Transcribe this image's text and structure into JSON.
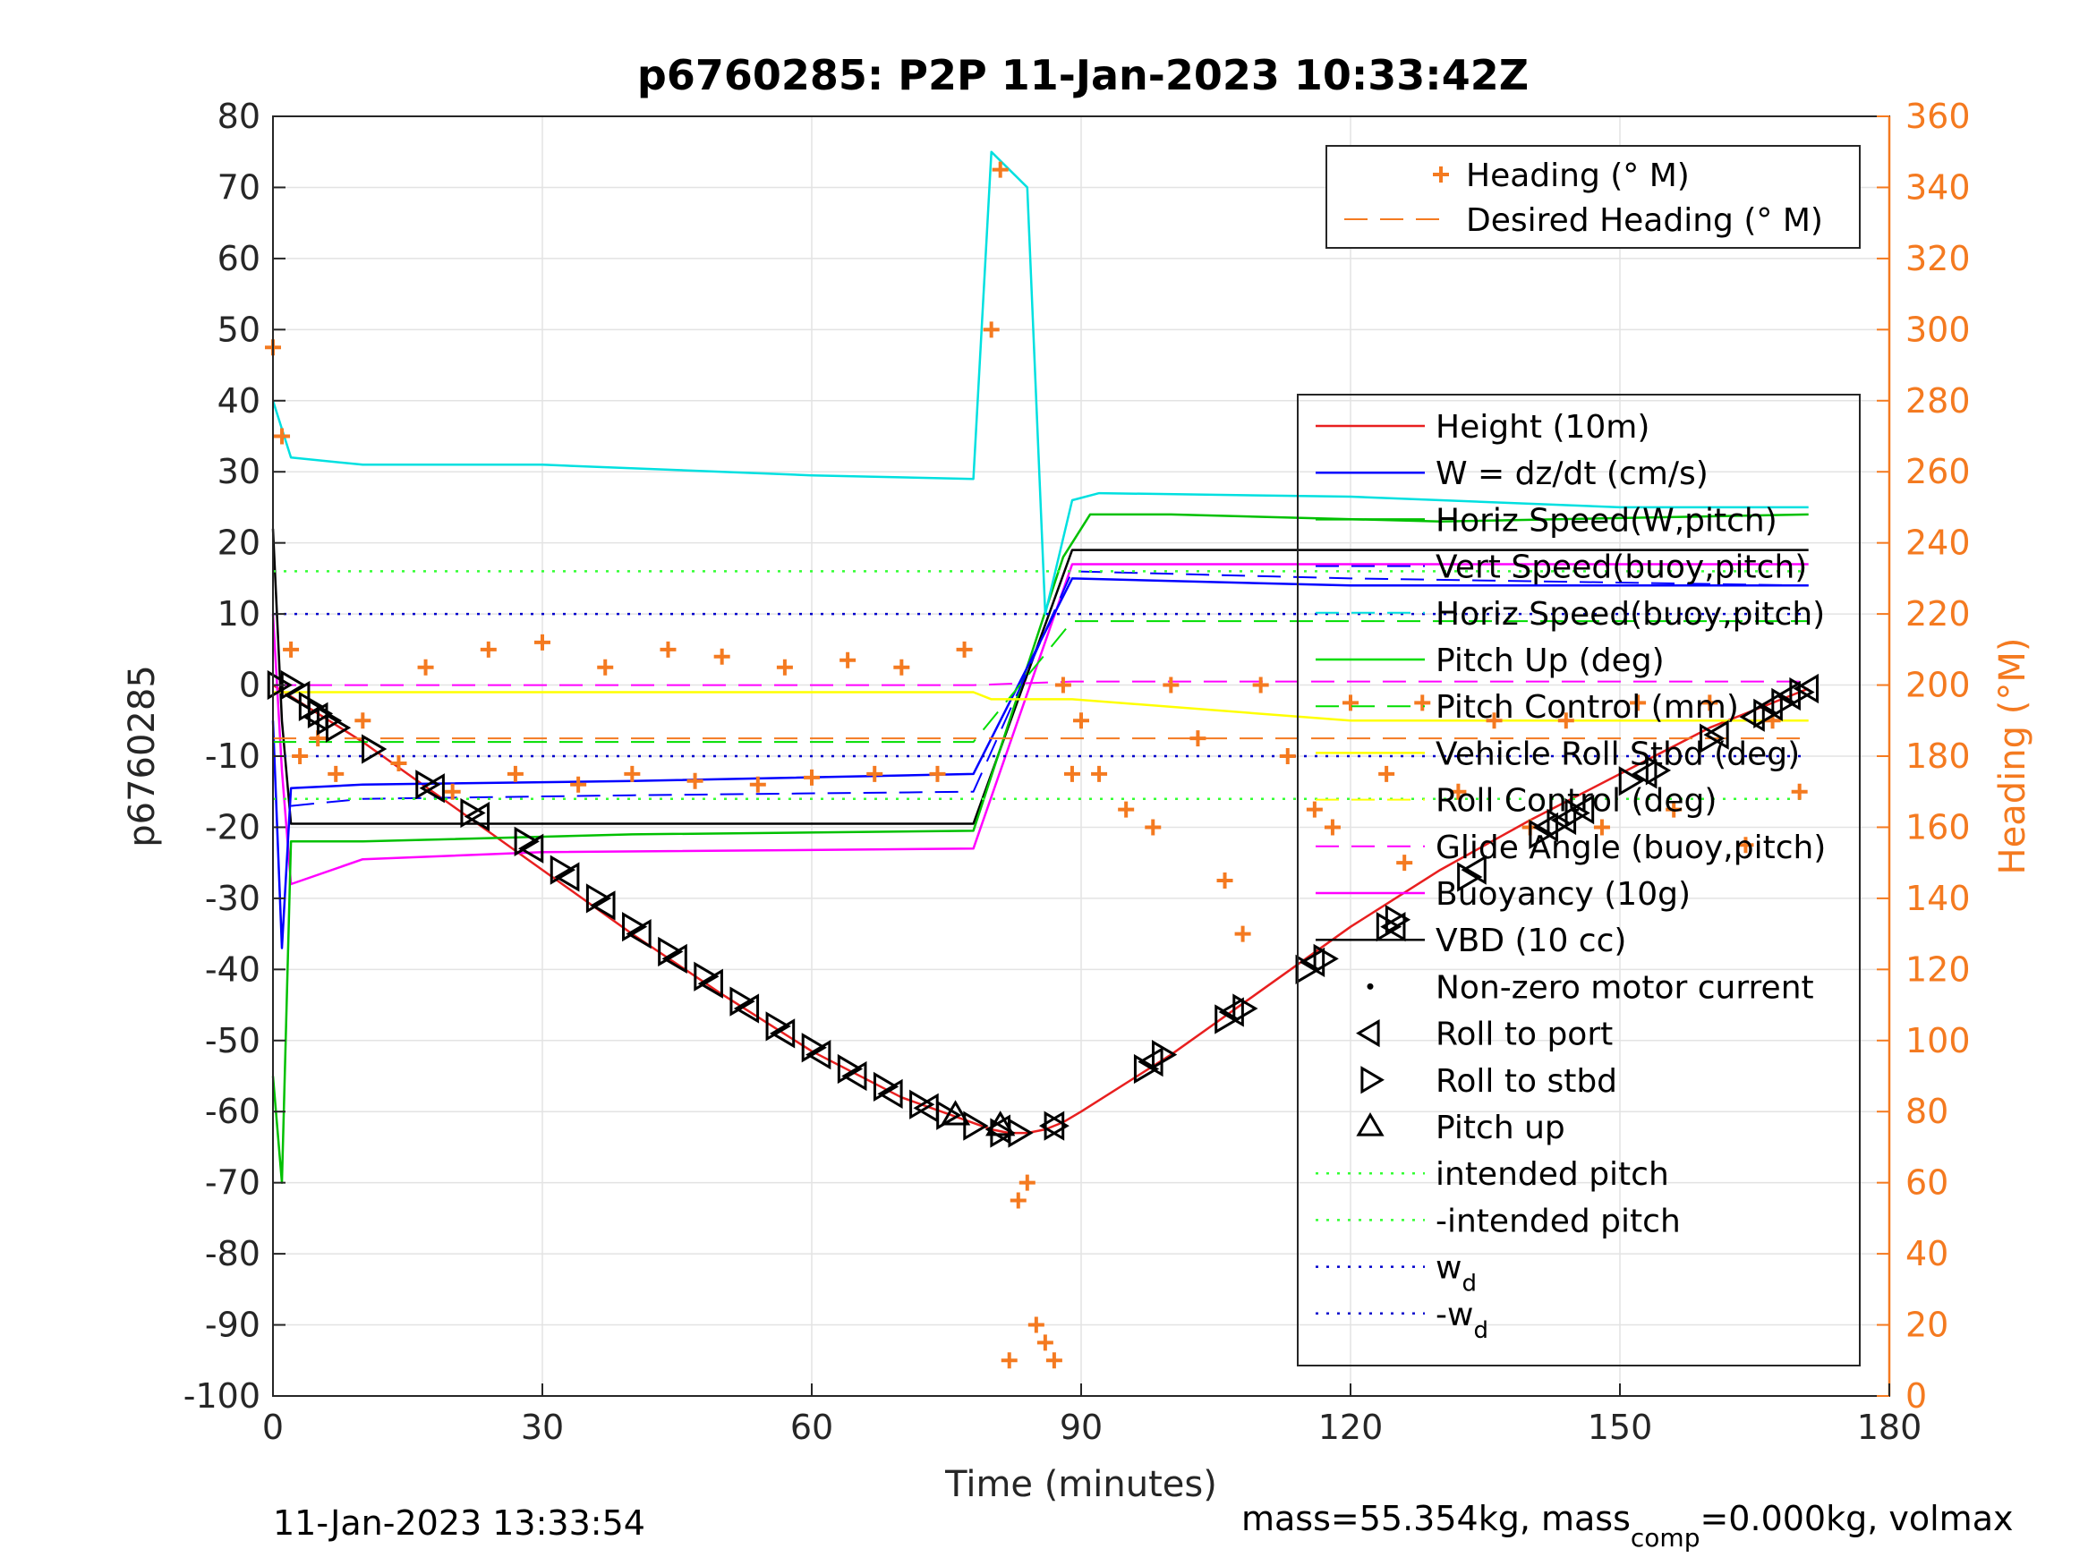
{
  "chart_data": {
    "type": "line",
    "title": "p6760285: P2P 11-Jan-2023 10:33:42Z",
    "xlabel": "Time (minutes)",
    "ylabel": "p6760285",
    "y2label": "Heading (°M)",
    "xlim": [
      0,
      180
    ],
    "ylim": [
      -100,
      80
    ],
    "y2lim": [
      0,
      360
    ],
    "xticks": [
      0,
      30,
      60,
      90,
      120,
      150,
      180
    ],
    "yticks": [
      80,
      70,
      60,
      50,
      40,
      30,
      20,
      10,
      0,
      -10,
      -20,
      -30,
      -40,
      -50,
      -60,
      -70,
      -80,
      -90,
      -100
    ],
    "y2ticks": [
      360,
      340,
      320,
      300,
      280,
      260,
      240,
      220,
      200,
      180,
      160,
      140,
      120,
      100,
      80,
      60,
      40,
      20,
      0
    ],
    "grid": true,
    "footer_left": "11-Jan-2023 13:33:54",
    "footer_right": "mass=55.354kg, mass",
    "footer_right_sub": "comp",
    "footer_right_tail": "=0.000kg, volmax",
    "colors": {
      "axes": "#262626",
      "heading": "#f47a20",
      "height": "#e81f1f",
      "w": "#0000ff",
      "horiz_speed_w": "#00c000",
      "vert_speed_buoy": "#0000ff",
      "horiz_speed_buoy": "#00e0e0",
      "pitch_up": "#00dd00",
      "pitch_control": "#00dd00",
      "roll": "#ffff00",
      "roll_control": "#ffff00",
      "glide_angle": "#ff00ff",
      "buoyancy": "#ff00ff",
      "vbd": "#000000",
      "intended_pitch": "#33ff33",
      "wd": "#0000cc",
      "markers": "#000000"
    },
    "legend_heading": {
      "position": "top-right",
      "entries": [
        {
          "label": "Heading (° M)",
          "style": "plus",
          "color": "#f47a20"
        },
        {
          "label": "Desired Heading (° M)",
          "style": "dash",
          "color": "#f47a20"
        }
      ]
    },
    "legend_main": {
      "position": "right",
      "entries": [
        {
          "label": "Height (10m)",
          "style": "line",
          "color": "#e81f1f"
        },
        {
          "label": "W = dz/dt (cm/s)",
          "style": "line",
          "color": "#0000ff"
        },
        {
          "label": "Horiz Speed(W,pitch)",
          "style": "line",
          "color": "#00c000"
        },
        {
          "label": "Vert Speed(buoy,pitch)",
          "style": "dash",
          "color": "#0000ff"
        },
        {
          "label": "Horiz Speed(buoy,pitch)",
          "style": "dash",
          "color": "#00e0e0"
        },
        {
          "label": "Pitch Up (deg)",
          "style": "line",
          "color": "#00dd00"
        },
        {
          "label": "Pitch Control (mm)",
          "style": "dash",
          "color": "#00dd00"
        },
        {
          "label": "Vehicle Roll Stbd (deg)",
          "style": "line",
          "color": "#ffff00"
        },
        {
          "label": "Roll Control (deg)",
          "style": "dash",
          "color": "#ffff00"
        },
        {
          "label": "Glide Angle (buoy,pitch)",
          "style": "dash",
          "color": "#ff00ff"
        },
        {
          "label": "Buoyancy (10g)",
          "style": "line",
          "color": "#ff00ff"
        },
        {
          "label": "VBD (10 cc)",
          "style": "line",
          "color": "#000000"
        },
        {
          "label": "Non-zero motor current",
          "style": "dot",
          "color": "#000000"
        },
        {
          "label": "Roll to port",
          "style": "tri-left",
          "color": "#000000"
        },
        {
          "label": "Roll to stbd",
          "style": "tri-right",
          "color": "#000000"
        },
        {
          "label": "Pitch up",
          "style": "tri-up",
          "color": "#000000"
        },
        {
          "label": "intended pitch",
          "style": "dot-line",
          "color": "#33ff33"
        },
        {
          "label": "-intended pitch",
          "style": "dot-line",
          "color": "#33ff33"
        },
        {
          "label": "w",
          "sub": "d",
          "style": "dot-line",
          "color": "#0000cc"
        },
        {
          "label": "-w",
          "sub": "d",
          "style": "dot-line",
          "color": "#0000cc"
        }
      ]
    },
    "series": [
      {
        "name": "Height (10m)",
        "axis": "left",
        "style": "line",
        "color": "#e81f1f",
        "x": [
          0,
          10,
          20,
          30,
          40,
          50,
          60,
          70,
          80,
          82,
          84,
          86,
          88,
          90,
          100,
          110,
          120,
          130,
          140,
          150,
          160,
          171
        ],
        "y": [
          0,
          -8,
          -17,
          -26,
          -35,
          -43.5,
          -51.5,
          -58,
          -62.5,
          -63,
          -63,
          -62.5,
          -61.5,
          -60,
          -52,
          -43,
          -34,
          -26,
          -19,
          -12.5,
          -6,
          -0.5
        ]
      },
      {
        "name": "VBD (10 cc)",
        "axis": "left",
        "style": "line",
        "color": "#000000",
        "x": [
          0,
          1,
          2,
          78,
          89,
          171
        ],
        "y": [
          22,
          -5,
          -19.5,
          -19.5,
          19,
          19
        ]
      },
      {
        "name": "Buoyancy (10g)",
        "axis": "left",
        "style": "line",
        "color": "#ff00ff",
        "x": [
          0,
          1,
          2,
          10,
          30,
          78,
          89,
          171
        ],
        "y": [
          10,
          -12,
          -28,
          -24.5,
          -23.5,
          -23,
          17,
          17
        ]
      },
      {
        "name": "Horiz Speed(W,pitch)",
        "axis": "left",
        "style": "line",
        "color": "#00c000",
        "x": [
          0,
          1,
          2,
          10,
          40,
          78,
          88,
          91,
          100,
          130,
          171
        ],
        "y": [
          -55,
          -70,
          -22,
          -22,
          -21,
          -20.5,
          18,
          24,
          24,
          23,
          24
        ]
      },
      {
        "name": "Horiz Speed(buoy,pitch)",
        "axis": "left",
        "style": "line",
        "color": "#00e0e0",
        "x": [
          0,
          2,
          10,
          30,
          60,
          78,
          80,
          84,
          86,
          89,
          92,
          120,
          150,
          171
        ],
        "y": [
          40,
          32,
          31,
          31,
          29.5,
          29,
          75,
          70,
          10,
          26,
          27,
          26.5,
          25,
          25
        ]
      },
      {
        "name": "W = dz/dt (cm/s)",
        "axis": "left",
        "style": "line",
        "color": "#0000ff",
        "x": [
          0,
          1,
          2,
          10,
          40,
          78,
          89,
          120,
          171
        ],
        "y": [
          -5,
          -37,
          -14.5,
          -14,
          -13.5,
          -12.5,
          15,
          14,
          14
        ]
      },
      {
        "name": "Vert Speed(buoy,pitch)",
        "axis": "left",
        "style": "dash",
        "color": "#0000ff",
        "x": [
          2,
          10,
          40,
          78,
          89,
          120,
          171
        ],
        "y": [
          -17,
          -16,
          -15.5,
          -15,
          16,
          15,
          14
        ]
      },
      {
        "name": "Pitch Control (mm)",
        "axis": "left",
        "style": "dash",
        "color": "#00dd00",
        "x": [
          0,
          78,
          89,
          171
        ],
        "y": [
          -8,
          -8,
          9,
          9
        ]
      },
      {
        "name": "Vehicle Roll Stbd (deg)",
        "axis": "left",
        "style": "line",
        "color": "#ffff00",
        "x": [
          0,
          78,
          80,
          89,
          120,
          171
        ],
        "y": [
          -1,
          -1,
          -2,
          -2,
          -5,
          -5
        ]
      },
      {
        "name": "Glide Angle (buoy,pitch)",
        "axis": "left",
        "style": "dash",
        "color": "#ff00ff",
        "x": [
          0,
          78,
          89,
          171
        ],
        "y": [
          0,
          0,
          0.5,
          0.5
        ]
      },
      {
        "name": "intended pitch",
        "axis": "left",
        "style": "dot-line",
        "color": "#33ff33",
        "x": [
          0,
          171
        ],
        "y": [
          16,
          16
        ]
      },
      {
        "name": "-intended pitch",
        "axis": "left",
        "style": "dot-line",
        "color": "#33ff33",
        "x": [
          0,
          171
        ],
        "y": [
          -16,
          -16
        ]
      },
      {
        "name": "w",
        "axis": "left",
        "style": "dot-line",
        "color": "#0000cc",
        "x": [
          0,
          171
        ],
        "y": [
          10,
          10
        ]
      },
      {
        "name": "-w",
        "axis": "left",
        "style": "dot-line",
        "color": "#0000cc",
        "x": [
          0,
          171
        ],
        "y": [
          -10,
          -10
        ]
      },
      {
        "name": "Desired Heading (° M)",
        "axis": "right",
        "style": "dash",
        "color": "#f47a20",
        "x": [
          0,
          171
        ],
        "y": [
          185,
          185
        ]
      },
      {
        "name": "Heading (° M)",
        "axis": "right",
        "style": "plus",
        "color": "#f47a20",
        "x": [
          0,
          1,
          2,
          3,
          5,
          7,
          10,
          14,
          17,
          20,
          24,
          27,
          30,
          34,
          37,
          40,
          44,
          47,
          50,
          54,
          57,
          60,
          64,
          67,
          70,
          74,
          77,
          80,
          81,
          82,
          83,
          84,
          85,
          86,
          87,
          88,
          89,
          90,
          92,
          95,
          98,
          100,
          103,
          106,
          108,
          110,
          113,
          116,
          118,
          120,
          124,
          126,
          128,
          132,
          136,
          140,
          144,
          148,
          152,
          156,
          160,
          164,
          167,
          170
        ],
        "y": [
          295,
          270,
          210,
          180,
          185,
          175,
          190,
          178,
          205,
          170,
          210,
          175,
          212,
          172,
          205,
          175,
          210,
          173,
          208,
          172,
          205,
          174,
          207,
          175,
          205,
          175,
          210,
          300,
          345,
          10,
          55,
          60,
          20,
          15,
          10,
          200,
          175,
          190,
          175,
          165,
          160,
          200,
          185,
          145,
          130,
          200,
          180,
          165,
          160,
          195,
          175,
          150,
          195,
          170,
          190,
          160,
          190,
          160,
          195,
          165,
          195,
          155,
          190,
          170
        ]
      }
    ],
    "markers": [
      {
        "type": "tri-right",
        "x": [
          0.5,
          2,
          4,
          5,
          6,
          7,
          11,
          17,
          22,
          28,
          32,
          36,
          40,
          44,
          48,
          52,
          56,
          60,
          64,
          68,
          72,
          75,
          78,
          81,
          83,
          87,
          97,
          99,
          106,
          108,
          115,
          117,
          124,
          125,
          133,
          141,
          143,
          145,
          151,
          154,
          160,
          166,
          168,
          170
        ],
        "y": [
          0,
          0,
          -3,
          -4,
          -5,
          -6,
          -9,
          -14,
          -18,
          -22,
          -26,
          -30,
          -34,
          -37.5,
          -41,
          -44.5,
          -48,
          -51,
          -54,
          -56.5,
          -59,
          -60.5,
          -62,
          -63,
          -63,
          -62,
          -54,
          -52,
          -47,
          -45.5,
          -40,
          -38.5,
          -34,
          -33,
          -27,
          -21,
          -19.5,
          -18,
          -13.5,
          -12,
          -7.5,
          -4,
          -2.5,
          -1
        ]
      },
      {
        "type": "tri-left",
        "x": [
          3,
          5,
          18,
          23,
          29,
          33,
          37,
          41,
          45,
          49,
          53,
          57,
          61,
          65,
          69,
          73,
          81,
          87,
          98,
          107,
          116,
          125,
          134,
          142,
          144,
          146,
          153,
          161,
          165,
          167,
          169,
          171
        ],
        "y": [
          -1.5,
          -4.5,
          -14.5,
          -18.5,
          -23,
          -27,
          -31,
          -35,
          -38.5,
          -42,
          -45.5,
          -49,
          -52,
          -55,
          -57.5,
          -59.5,
          -62.5,
          -62,
          -53,
          -46,
          -39,
          -34,
          -26,
          -20,
          -19,
          -17.5,
          -12.5,
          -7,
          -4.5,
          -3,
          -1.5,
          -0.5
        ]
      },
      {
        "type": "tri-up",
        "x": [
          76,
          81
        ],
        "y": [
          -60.5,
          -62
        ]
      }
    ]
  }
}
